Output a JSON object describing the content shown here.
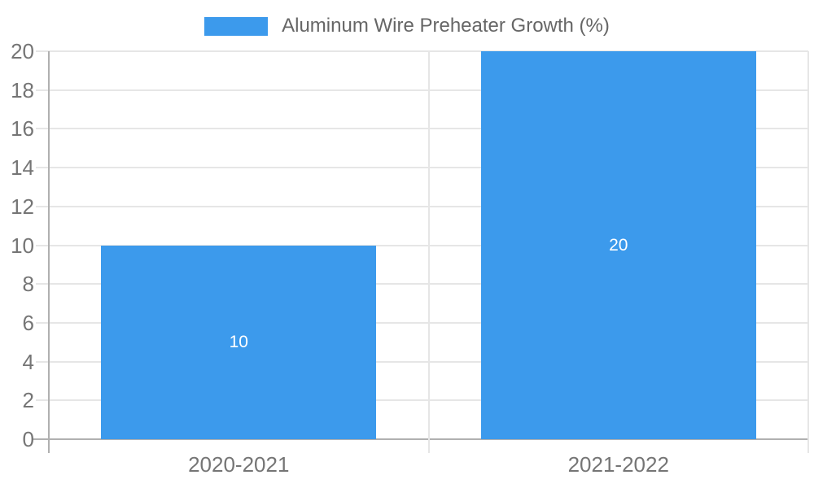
{
  "chart_data": {
    "type": "bar",
    "categories": [
      "2020-2021",
      "2021-2022"
    ],
    "series": [
      {
        "name": "Aluminum Wire Preheater Growth (%)",
        "values": [
          10,
          20
        ]
      }
    ],
    "data_labels": [
      "10",
      "20"
    ],
    "ylim": [
      0,
      20
    ],
    "ytick_step": 2,
    "yticks": [
      0,
      2,
      4,
      6,
      8,
      10,
      12,
      14,
      16,
      18,
      20
    ],
    "grid": true,
    "legend_position": "top",
    "colors": {
      "bar": "#3C9AEC",
      "grid": "#e6e6e6",
      "axis": "#b0b0b0",
      "tick_text": "#757575",
      "legend_text": "#666666",
      "data_label": "#ffffff"
    }
  }
}
